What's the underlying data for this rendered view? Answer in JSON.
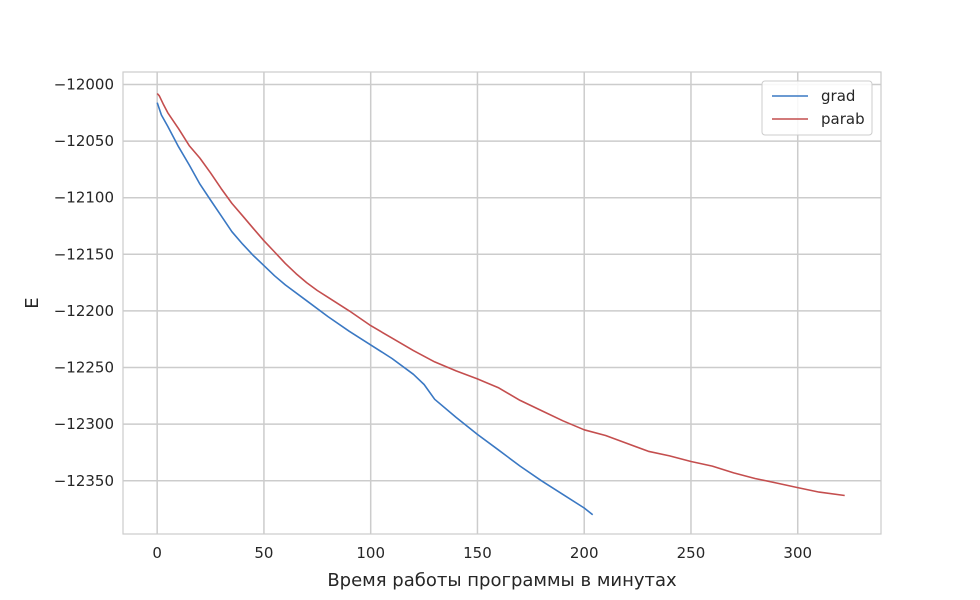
{
  "chart_data": {
    "type": "line",
    "title": "",
    "xlabel": "Время работы программы в минутах",
    "ylabel": "E",
    "xlim": [
      -16,
      339
    ],
    "ylim": [
      -12397,
      -11989
    ],
    "x_ticks": [
      0,
      50,
      100,
      150,
      200,
      250,
      300
    ],
    "y_ticks": [
      -12000,
      -12050,
      -12100,
      -12150,
      -12200,
      -12250,
      -12300,
      -12350
    ],
    "x_tick_labels": [
      "0",
      "50",
      "100",
      "150",
      "200",
      "250",
      "300"
    ],
    "y_tick_labels": [
      "−12000",
      "−12050",
      "−12100",
      "−12150",
      "−12200",
      "−12250",
      "−12300",
      "−12350"
    ],
    "grid": true,
    "legend_position": "top-right",
    "series": [
      {
        "name": "grad",
        "color": "#3a78c3",
        "x": [
          0,
          2,
          5,
          10,
          15,
          20,
          25,
          30,
          35,
          40,
          45,
          50,
          55,
          60,
          70,
          80,
          90,
          100,
          110,
          120,
          125,
          130,
          140,
          150,
          160,
          170,
          180,
          190,
          200,
          204
        ],
        "y": [
          -12016,
          -12027,
          -12037,
          -12055,
          -12071,
          -12088,
          -12102,
          -12116,
          -12130,
          -12141,
          -12151,
          -12160,
          -12169,
          -12177,
          -12191,
          -12205,
          -12218,
          -12230,
          -12242,
          -12256,
          -12265,
          -12278,
          -12294,
          -12309,
          -12323,
          -12337,
          -12350,
          -12362,
          -12374,
          -12380
        ]
      },
      {
        "name": "parab",
        "color": "#c44e4e",
        "x": [
          0,
          1,
          3,
          5,
          10,
          15,
          20,
          25,
          30,
          35,
          40,
          45,
          50,
          55,
          60,
          65,
          70,
          75,
          80,
          90,
          100,
          110,
          120,
          130,
          140,
          150,
          160,
          170,
          180,
          190,
          200,
          210,
          220,
          230,
          240,
          250,
          260,
          270,
          280,
          290,
          300,
          310,
          322
        ],
        "y": [
          -12008,
          -12010,
          -12018,
          -12025,
          -12039,
          -12054,
          -12065,
          -12078,
          -12092,
          -12105,
          -12116,
          -12127,
          -12138,
          -12148,
          -12158,
          -12167,
          -12175,
          -12182,
          -12188,
          -12200,
          -12213,
          -12224,
          -12235,
          -12245,
          -12253,
          -12260,
          -12268,
          -12279,
          -12288,
          -12297,
          -12305,
          -12310,
          -12317,
          -12324,
          -12328,
          -12333,
          -12337,
          -12343,
          -12348,
          -12352,
          -12356,
          -12360,
          -12363
        ]
      }
    ]
  }
}
